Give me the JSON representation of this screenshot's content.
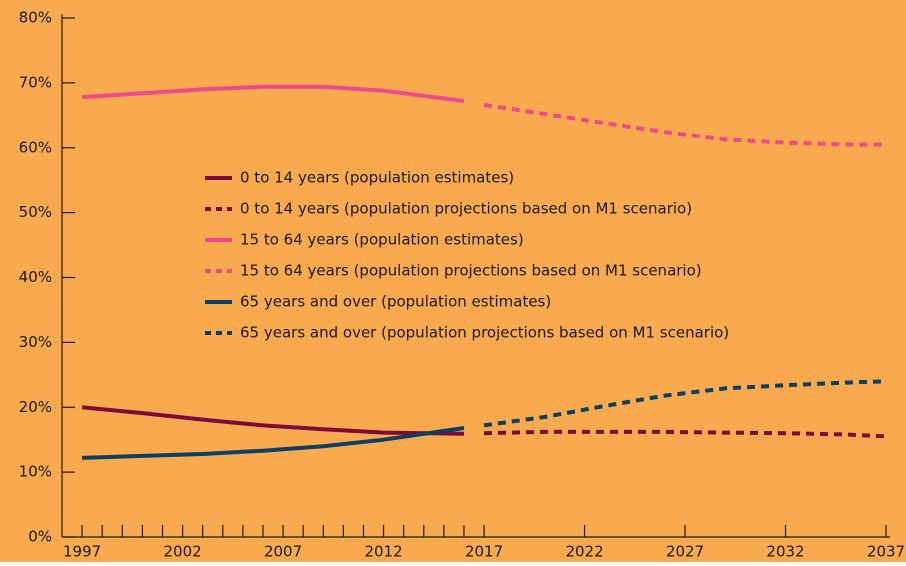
{
  "chart_data": {
    "type": "line",
    "background": "#f9aa4e",
    "xlim": [
      1996,
      2037
    ],
    "ylim": [
      0,
      80
    ],
    "xticks": [
      1997,
      2002,
      2007,
      2012,
      2017,
      2022,
      2027,
      2032,
      2037
    ],
    "xminorticks": [
      1998,
      1999,
      2000,
      2001,
      2003,
      2004,
      2005,
      2006,
      2008,
      2009,
      2010,
      2011,
      2013,
      2014,
      2015,
      2016
    ],
    "yticks": [
      {
        "value": 0,
        "label": "0%"
      },
      {
        "value": 10,
        "label": "10%"
      },
      {
        "value": 20,
        "label": "20%"
      },
      {
        "value": 30,
        "label": "30%"
      },
      {
        "value": 40,
        "label": "40%"
      },
      {
        "value": 50,
        "label": "50%"
      },
      {
        "value": 60,
        "label": "60%"
      },
      {
        "value": 70,
        "label": "70%"
      },
      {
        "value": 80,
        "label": "80%"
      }
    ],
    "series": [
      {
        "name": "0 to 14 years (population estimates)",
        "color": "#7c0b3c",
        "dashed": false,
        "x": [
          1997,
          2000,
          2003,
          2006,
          2009,
          2012,
          2016
        ],
        "values": [
          20.0,
          19.1,
          18.1,
          17.2,
          16.6,
          16.1,
          15.9
        ]
      },
      {
        "name": "0 to 14 years (population projections based on M1 scenario)",
        "color": "#7c0b3c",
        "dashed": true,
        "x": [
          2017,
          2020,
          2023,
          2026,
          2029,
          2032,
          2035,
          2037
        ],
        "values": [
          16.0,
          16.2,
          16.2,
          16.2,
          16.1,
          16.0,
          15.8,
          15.5
        ]
      },
      {
        "name": "15 to 64 years (population estimates)",
        "color": "#ee4a8b",
        "dashed": false,
        "x": [
          1997,
          2000,
          2003,
          2006,
          2009,
          2012,
          2016
        ],
        "values": [
          67.8,
          68.4,
          69.0,
          69.4,
          69.4,
          68.8,
          67.2
        ]
      },
      {
        "name": "15 to 64 years (population projections based on M1 scenario)",
        "color": "#ee4a8b",
        "dashed": true,
        "x": [
          2017,
          2020,
          2023,
          2026,
          2029,
          2032,
          2035,
          2037
        ],
        "values": [
          66.6,
          65.2,
          63.8,
          62.4,
          61.3,
          60.8,
          60.5,
          60.5
        ]
      },
      {
        "name": "65 years and over (population estimates)",
        "color": "#0c3f61",
        "dashed": false,
        "x": [
          1997,
          2000,
          2003,
          2006,
          2009,
          2012,
          2016
        ],
        "values": [
          12.2,
          12.5,
          12.8,
          13.3,
          14.0,
          15.0,
          16.8
        ]
      },
      {
        "name": "65 years and over (population projections based on M1 scenario)",
        "color": "#0c3f61",
        "dashed": true,
        "x": [
          2017,
          2020,
          2023,
          2026,
          2029,
          2032,
          2035,
          2037
        ],
        "values": [
          17.2,
          18.5,
          20.2,
          21.8,
          22.9,
          23.4,
          23.8,
          24.0
        ]
      }
    ]
  }
}
